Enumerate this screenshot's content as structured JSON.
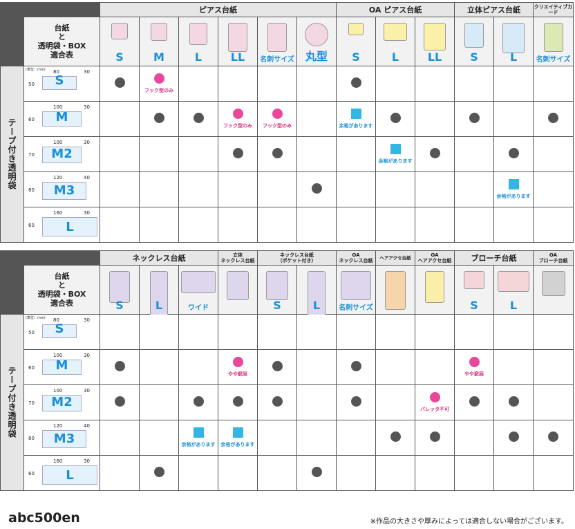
{
  "table1": {
    "groups": [
      "ピアス台紙",
      "OA ピアス台紙",
      "立体ピアス台紙",
      "クリエイティブカード"
    ],
    "title": "台紙\nと\n透明袋・BOX\n適合表",
    "side_label": "テープ付き透明袋",
    "products": [
      "S",
      "M",
      "L",
      "LL",
      "名刺サイズ",
      "丸型",
      "S",
      "L",
      "LL",
      "S",
      "L",
      "名刺サイズ"
    ],
    "unit": "(単位：mm)",
    "rows": [
      {
        "code": "S",
        "h": "50",
        "w": "80",
        "flap": "30",
        "cells": [
          "dot",
          "pdot:フック型のみ",
          "",
          "",
          "",
          "",
          "dot",
          "",
          "",
          "",
          "",
          ""
        ]
      },
      {
        "code": "M",
        "h": "60",
        "w": "100",
        "flap": "30",
        "cells": [
          "",
          "dot",
          "dot",
          "pdot:フック型のみ",
          "pdot:フック型のみ",
          "",
          "sq:余裕があります",
          "dot",
          "",
          "dot",
          "",
          "dot"
        ]
      },
      {
        "code": "M2",
        "h": "70",
        "w": "100",
        "flap": "30",
        "cells": [
          "",
          "",
          "",
          "dot",
          "dot",
          "",
          "",
          "sq:余裕があります",
          "dot",
          "",
          "dot",
          ""
        ]
      },
      {
        "code": "M3",
        "h": "80",
        "w": "120",
        "flap": "40",
        "cells": [
          "",
          "",
          "",
          "",
          "",
          "dot",
          "",
          "",
          "",
          "",
          "sq:余裕があります",
          ""
        ]
      },
      {
        "code": "L",
        "h": "60",
        "w": "160",
        "flap": "30",
        "cells": [
          "",
          "",
          "",
          "",
          "",
          "",
          "",
          "",
          "",
          "",
          "",
          ""
        ]
      }
    ]
  },
  "table2": {
    "groups": [
      "ネックレス台紙",
      "立体\nネックレス台紙",
      "ネックレス台紙\n（ポケット付き）",
      "OA\nネックレス台紙",
      "ヘアアクセ台紙",
      "OA\nヘアアクセ台紙",
      "ブローチ台紙",
      "OA\nブローチ台紙"
    ],
    "title": "台紙\nと\n透明袋・BOX\n適合表",
    "side_label": "テープ付き透明袋",
    "products": [
      "S",
      "L",
      "ワイド",
      "",
      "S",
      "L",
      "名刺サイズ",
      "",
      "",
      "S",
      "L",
      ""
    ],
    "unit": "(単位：mm)",
    "rows": [
      {
        "code": "S",
        "h": "50",
        "w": "80",
        "flap": "30",
        "cells": [
          "",
          "",
          "",
          "",
          "",
          "",
          "",
          "",
          "",
          "",
          "",
          ""
        ]
      },
      {
        "code": "M",
        "h": "60",
        "w": "100",
        "flap": "30",
        "cells": [
          "dot",
          "",
          "",
          "pdot:やや窮屈",
          "dot",
          "",
          "dot",
          "",
          "",
          "pdot:やや窮屈",
          "",
          ""
        ]
      },
      {
        "code": "M2",
        "h": "70",
        "w": "100",
        "flap": "30",
        "cells": [
          "dot",
          "",
          "dot",
          "dot",
          "dot",
          "",
          "dot",
          "",
          "pdot:バレッタ不可",
          "dot",
          "dot",
          ""
        ]
      },
      {
        "code": "M3",
        "h": "80",
        "w": "120",
        "flap": "40",
        "cells": [
          "",
          "",
          "sq:余裕があります",
          "sq:余裕があります",
          "",
          "",
          "",
          "dot",
          "dot",
          "",
          "dot",
          "dot"
        ]
      },
      {
        "code": "L",
        "h": "60",
        "w": "160",
        "flap": "30",
        "cells": [
          "",
          "dot",
          "",
          "",
          "",
          "dot",
          "",
          "",
          "",
          "",
          "",
          ""
        ]
      }
    ]
  },
  "footer": {
    "code": "abc500en",
    "note": "※作品の大きさや厚みによっては適合しない場合がございます。"
  },
  "colors": {
    "accent": "#1a8fd6",
    "pink": "#e8479c",
    "dot": "#555555",
    "square": "#33b5e5"
  }
}
